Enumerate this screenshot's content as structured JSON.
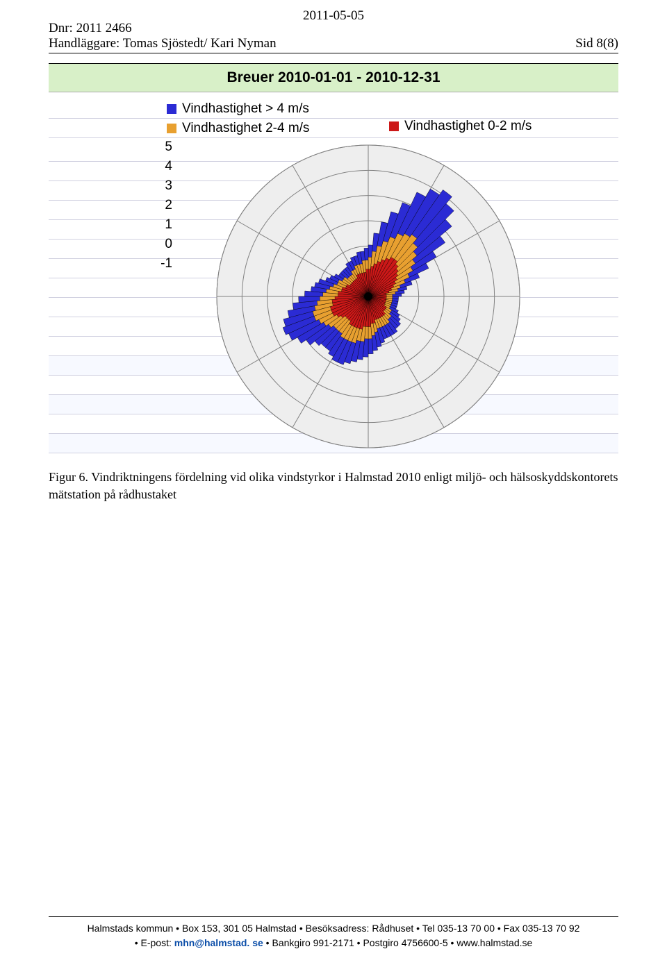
{
  "header": {
    "date": "2011-05-05",
    "dnr": "Dnr: 2011 2466",
    "handler": "Handläggare: Tomas Sjöstedt/ Kari Nyman",
    "page": "Sid 8(8)"
  },
  "chart": {
    "title": "Breuer    2010-01-01 - 2010-12-31",
    "type": "wind-rose-polar",
    "legend": [
      {
        "label": "Vindhastighet > 4 m/s",
        "color": "#2b2bd4"
      },
      {
        "label": "Vindhastighet 2-4 m/s",
        "color": "#e8a030"
      },
      {
        "label": "Vindhastighet 0-2 m/s",
        "color": "#cc1818"
      }
    ],
    "axis_ticks": [
      "5",
      "4",
      "3",
      "2",
      "1",
      "0",
      "-1"
    ],
    "background_color": "#eeeeee",
    "grid_color": "#808080",
    "tick_fontsize": 19,
    "title_fontsize": 21,
    "rings": [
      1,
      2,
      3,
      4,
      5,
      6
    ],
    "sector_lines": 12,
    "n_bins": 72,
    "bars": {
      "comment": "for each 5° bin: [red_radius, orange_radius, blue_radius] as fraction of max ring (0..1)",
      "colors": [
        "#cc1818",
        "#e8a030",
        "#2b2bd4"
      ],
      "values": [
        [
          0.18,
          0.26,
          0.34
        ],
        [
          0.2,
          0.3,
          0.42
        ],
        [
          0.22,
          0.34,
          0.5
        ],
        [
          0.24,
          0.38,
          0.58
        ],
        [
          0.26,
          0.42,
          0.66
        ],
        [
          0.28,
          0.46,
          0.76
        ],
        [
          0.3,
          0.48,
          0.82
        ],
        [
          0.3,
          0.5,
          0.86
        ],
        [
          0.28,
          0.46,
          0.8
        ],
        [
          0.26,
          0.42,
          0.72
        ],
        [
          0.24,
          0.38,
          0.62
        ],
        [
          0.22,
          0.34,
          0.52
        ],
        [
          0.2,
          0.3,
          0.44
        ],
        [
          0.18,
          0.26,
          0.36
        ],
        [
          0.16,
          0.22,
          0.3
        ],
        [
          0.14,
          0.2,
          0.26
        ],
        [
          0.12,
          0.18,
          0.24
        ],
        [
          0.12,
          0.16,
          0.22
        ],
        [
          0.12,
          0.16,
          0.2
        ],
        [
          0.12,
          0.16,
          0.2
        ],
        [
          0.12,
          0.16,
          0.2
        ],
        [
          0.12,
          0.16,
          0.2
        ],
        [
          0.12,
          0.16,
          0.2
        ],
        [
          0.12,
          0.16,
          0.22
        ],
        [
          0.14,
          0.18,
          0.24
        ],
        [
          0.14,
          0.18,
          0.26
        ],
        [
          0.14,
          0.2,
          0.28
        ],
        [
          0.16,
          0.2,
          0.28
        ],
        [
          0.16,
          0.22,
          0.3
        ],
        [
          0.16,
          0.22,
          0.3
        ],
        [
          0.16,
          0.22,
          0.3
        ],
        [
          0.16,
          0.22,
          0.3
        ],
        [
          0.16,
          0.22,
          0.32
        ],
        [
          0.18,
          0.24,
          0.34
        ],
        [
          0.18,
          0.26,
          0.36
        ],
        [
          0.2,
          0.28,
          0.38
        ],
        [
          0.2,
          0.28,
          0.4
        ],
        [
          0.2,
          0.3,
          0.42
        ],
        [
          0.22,
          0.3,
          0.44
        ],
        [
          0.22,
          0.32,
          0.46
        ],
        [
          0.22,
          0.32,
          0.48
        ],
        [
          0.22,
          0.32,
          0.48
        ],
        [
          0.22,
          0.32,
          0.46
        ],
        [
          0.2,
          0.3,
          0.44
        ],
        [
          0.2,
          0.3,
          0.44
        ],
        [
          0.2,
          0.3,
          0.46
        ],
        [
          0.22,
          0.32,
          0.5
        ],
        [
          0.24,
          0.34,
          0.54
        ],
        [
          0.26,
          0.36,
          0.58
        ],
        [
          0.26,
          0.38,
          0.6
        ],
        [
          0.26,
          0.38,
          0.58
        ],
        [
          0.24,
          0.36,
          0.54
        ],
        [
          0.24,
          0.34,
          0.5
        ],
        [
          0.22,
          0.32,
          0.46
        ],
        [
          0.2,
          0.3,
          0.42
        ],
        [
          0.2,
          0.28,
          0.38
        ],
        [
          0.18,
          0.26,
          0.36
        ],
        [
          0.18,
          0.24,
          0.34
        ],
        [
          0.16,
          0.22,
          0.3
        ],
        [
          0.16,
          0.22,
          0.28
        ],
        [
          0.14,
          0.2,
          0.26
        ],
        [
          0.14,
          0.2,
          0.24
        ],
        [
          0.14,
          0.18,
          0.24
        ],
        [
          0.14,
          0.18,
          0.24
        ],
        [
          0.14,
          0.18,
          0.24
        ],
        [
          0.14,
          0.2,
          0.26
        ],
        [
          0.16,
          0.2,
          0.26
        ],
        [
          0.16,
          0.22,
          0.28
        ],
        [
          0.16,
          0.22,
          0.28
        ],
        [
          0.16,
          0.22,
          0.3
        ],
        [
          0.16,
          0.24,
          0.3
        ],
        [
          0.18,
          0.24,
          0.32
        ]
      ]
    }
  },
  "caption": {
    "label": "Figur 6.",
    "text": "Vindriktningens fördelning vid olika vindstyrkor i Halmstad 2010 enligt miljö- och hälsoskyddskontorets mätstation på rådhustaket"
  },
  "footer": {
    "line1": "Halmstads kommun • Box 153, 301 05 Halmstad • Besöksadress: Rådhuset • Tel 035-13 70 00 • Fax 035-13 70 92",
    "line2_prefix": "• E-post: ",
    "email": "mhn@halmstad.",
    "email_suffix": " se",
    "line2_rest": " • Bankgiro 991-2171 • Postgiro 4756600-5 • www.halmstad.se"
  }
}
